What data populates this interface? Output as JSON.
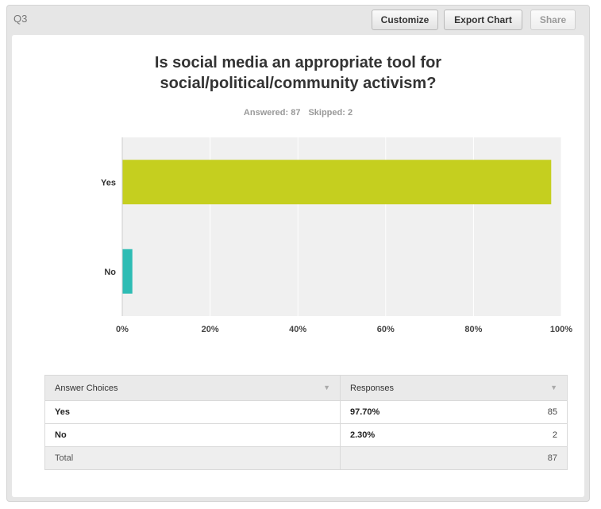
{
  "header": {
    "question_id": "Q3",
    "customize_label": "Customize",
    "export_label": "Export Chart",
    "share_label": "Share"
  },
  "summary": {
    "answered": "Answered: 87",
    "skipped": "Skipped: 2"
  },
  "table": {
    "col_choices": "Answer Choices",
    "col_responses": "Responses",
    "rows": [
      {
        "label": "Yes",
        "percent": "97.70%",
        "count": "85"
      },
      {
        "label": "No",
        "percent": "2.30%",
        "count": "2"
      }
    ],
    "total_label": "Total",
    "total_count": "87"
  },
  "chart_data": {
    "type": "bar",
    "orientation": "horizontal",
    "title_lines": [
      "Is social media an appropriate tool for",
      "social/political/community activism?"
    ],
    "categories": [
      "Yes",
      "No"
    ],
    "values": [
      97.7,
      2.3
    ],
    "xlim": [
      0,
      100
    ],
    "x_ticks": [
      "0%",
      "20%",
      "40%",
      "60%",
      "80%",
      "100%"
    ],
    "grid": true,
    "colors": [
      "#c5cf1f",
      "#2ebcb4"
    ],
    "plot_background": "#f0f0f0"
  }
}
